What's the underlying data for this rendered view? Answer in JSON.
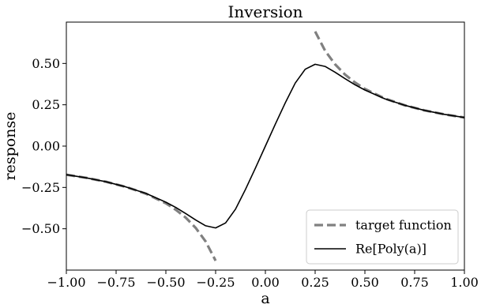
{
  "chart_data": {
    "type": "line",
    "title": "Inversion",
    "xlabel": "a",
    "ylabel": "response",
    "xlim": [
      -1.0,
      1.0
    ],
    "ylim": [
      -0.75,
      0.75
    ],
    "xticks": [
      -1.0,
      -0.75,
      -0.5,
      -0.25,
      0.0,
      0.25,
      0.5,
      0.75,
      1.0
    ],
    "xtick_labels": [
      "−1.00",
      "−0.75",
      "−0.50",
      "−0.25",
      "0.00",
      "0.25",
      "0.50",
      "0.75",
      "1.00"
    ],
    "yticks": [
      -0.5,
      -0.25,
      0.0,
      0.25,
      0.5
    ],
    "ytick_labels": [
      "−0.50",
      "−0.25",
      "0.00",
      "0.25",
      "0.50"
    ],
    "grid": false,
    "legend_position": "bottom-right",
    "series": [
      {
        "name": "target function",
        "style": "dashed",
        "color": "#808080",
        "x": [
          -1.0,
          -0.9,
          -0.8,
          -0.7,
          -0.6,
          -0.5,
          -0.45,
          -0.4,
          -0.35,
          -0.3,
          -0.25,
          0.25,
          0.3,
          0.35,
          0.4,
          0.45,
          0.5,
          0.6,
          0.7,
          0.8,
          0.9,
          1.0
        ],
        "y": [
          -0.173,
          -0.192,
          -0.216,
          -0.247,
          -0.288,
          -0.346,
          -0.385,
          -0.433,
          -0.495,
          -0.577,
          -0.693,
          0.693,
          0.577,
          0.495,
          0.433,
          0.385,
          0.346,
          0.288,
          0.247,
          0.216,
          0.192,
          0.173
        ]
      },
      {
        "name": "Re[Poly(a)]",
        "style": "solid",
        "color": "#000000",
        "x": [
          -1.0,
          -0.9,
          -0.8,
          -0.7,
          -0.6,
          -0.5,
          -0.45,
          -0.4,
          -0.35,
          -0.3,
          -0.25,
          -0.2,
          -0.15,
          -0.1,
          -0.05,
          0.0,
          0.05,
          0.1,
          0.15,
          0.2,
          0.25,
          0.3,
          0.35,
          0.4,
          0.45,
          0.5,
          0.6,
          0.7,
          0.8,
          0.9,
          1.0
        ],
        "y": [
          -0.173,
          -0.192,
          -0.216,
          -0.247,
          -0.286,
          -0.339,
          -0.371,
          -0.408,
          -0.447,
          -0.482,
          -0.495,
          -0.465,
          -0.381,
          -0.262,
          -0.133,
          0.0,
          0.133,
          0.262,
          0.381,
          0.465,
          0.495,
          0.482,
          0.447,
          0.408,
          0.371,
          0.339,
          0.286,
          0.247,
          0.216,
          0.192,
          0.173
        ]
      }
    ]
  }
}
